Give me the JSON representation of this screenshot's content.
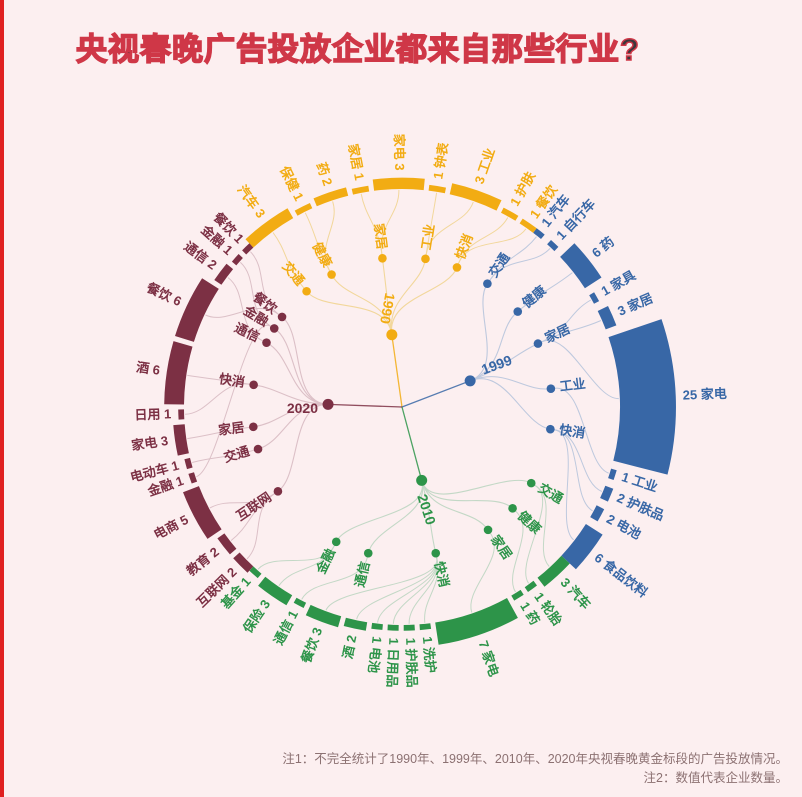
{
  "page": {
    "title": "央视春晚广告投放企业都来自那些行业?",
    "title_fill": "#3B373C",
    "title_stroke": "#CF3747",
    "background": "#FCEFF0",
    "accent_stripe": "#E02020",
    "notes_color": "#8C7172",
    "notes": [
      "注1：不完全统计了1990年、1999年、2010年、2020年央视春晚黄金标段的广告投放情况。",
      "注2：数值代表企业数量。"
    ]
  },
  "chart_data": {
    "type": "radial-dendrogram",
    "title": "央视春晚广告投放企业都来自那些行业?",
    "unit_note": "数值代表企业数量",
    "center": [
      402,
      407
    ],
    "ring_radius": 218,
    "group_radius": 150,
    "branches": [
      {
        "year": "1990",
        "color": "#F2AC13",
        "link_color": "#F2D79B",
        "start": -43,
        "end": 37,
        "node": {
          "angle": 352,
          "radius": 73
        },
        "label": {
          "angle": 351,
          "radius": 100,
          "rot": 100,
          "anchor": "middle"
        },
        "groups": [
          {
            "name": "交通",
            "angle": 320.5
          },
          {
            "name": "健康",
            "angle": 332
          },
          {
            "name": "家居",
            "angle": 352.5
          },
          {
            "name": "工业",
            "angle": 9
          },
          {
            "name": "快消",
            "angle": 21.5
          }
        ],
        "leaves": [
          {
            "name": "汽车",
            "count": 3,
            "group": 0
          },
          {
            "name": "保健",
            "count": 1,
            "group": 1
          },
          {
            "name": "药",
            "count": 2,
            "group": 1
          },
          {
            "name": "家居",
            "count": 1,
            "group": 2
          },
          {
            "name": "家电",
            "count": 3,
            "group": 2
          },
          {
            "name": "钟表",
            "count": 1,
            "group": 3
          },
          {
            "name": "工业",
            "count": 3,
            "group": 3
          },
          {
            "name": "护肤",
            "count": 1,
            "group": 4
          },
          {
            "name": "餐饮",
            "count": 1,
            "group": 4
          }
        ]
      },
      {
        "year": "1999",
        "color": "#3867A6",
        "link_color": "#BEC9DE",
        "start": 37,
        "end": 133,
        "node": {
          "angle": 69,
          "radius": 73
        },
        "label": {
          "angle": 66,
          "radius": 88,
          "rot": -20,
          "anchor": "start"
        },
        "groups": [
          {
            "name": "交通",
            "angle": 34.7
          },
          {
            "name": "健康",
            "angle": 50.5
          },
          {
            "name": "家居",
            "angle": 65
          },
          {
            "name": "工业",
            "angle": 83
          },
          {
            "name": "快消",
            "angle": 98.5
          }
        ],
        "leaves": [
          {
            "name": "汽车",
            "count": 1,
            "group": 0
          },
          {
            "name": "自行车",
            "count": 1,
            "group": 0
          },
          {
            "name": "药",
            "count": 6,
            "group": 1
          },
          {
            "name": "家具",
            "count": 1,
            "group": 2
          },
          {
            "name": "家居",
            "count": 3,
            "group": 2
          },
          {
            "name": "家电",
            "count": 25,
            "group": 2
          },
          {
            "name": "工业",
            "count": 1,
            "group": 3
          },
          {
            "name": "护肤品",
            "count": 2,
            "group": 4
          },
          {
            "name": "电池",
            "count": 2,
            "group": 4
          },
          {
            "name": "食品饮料",
            "count": 6,
            "group": 4
          }
        ]
      },
      {
        "year": "2010",
        "color": "#2D9449",
        "link_color": "#C3D8C6",
        "start": 133,
        "end": 223,
        "node": {
          "angle": 165,
          "radius": 76
        },
        "label": {
          "angle": 168,
          "radius": 90,
          "rot": 72,
          "anchor": "start"
        },
        "groups": [
          {
            "name": "交通",
            "angle": 120.5
          },
          {
            "name": "健康",
            "angle": 132.5
          },
          {
            "name": "家居",
            "angle": 145
          },
          {
            "name": "快消",
            "angle": 167
          },
          {
            "name": "通信",
            "angle": 193
          },
          {
            "name": "金融",
            "angle": 206
          }
        ],
        "leaves": [
          {
            "name": "汽车",
            "count": 3,
            "group": 0
          },
          {
            "name": "轮胎",
            "count": 1,
            "group": 0
          },
          {
            "name": "药",
            "count": 1,
            "group": 1
          },
          {
            "name": "家电",
            "count": 7,
            "group": 2
          },
          {
            "name": "洗护",
            "count": 1,
            "group": 3
          },
          {
            "name": "护肤品",
            "count": 1,
            "group": 3
          },
          {
            "name": "日用品",
            "count": 1,
            "group": 3
          },
          {
            "name": "电池",
            "count": 1,
            "group": 3
          },
          {
            "name": "酒",
            "count": 2,
            "group": 3
          },
          {
            "name": "餐饮",
            "count": 3,
            "group": 3
          },
          {
            "name": "通信",
            "count": 1,
            "group": 4
          },
          {
            "name": "保险",
            "count": 3,
            "group": 5
          },
          {
            "name": "基金",
            "count": 1,
            "group": 5
          }
        ]
      },
      {
        "year": "2020",
        "color": "#7C3044",
        "link_color": "#DCC0C7",
        "start": 223,
        "end": 317,
        "node": {
          "angle": 272,
          "radius": 74
        },
        "label": {
          "angle": 268.5,
          "radius": 84,
          "rot": 0,
          "anchor": "end"
        },
        "groups": [
          {
            "name": "互联网",
            "angle": 235.8
          },
          {
            "name": "交通",
            "angle": 253.7
          },
          {
            "name": "家居",
            "angle": 262.4
          },
          {
            "name": "快消",
            "angle": 278.5
          },
          {
            "name": "通信",
            "angle": 295.4
          },
          {
            "name": "金融",
            "angle": 301.6
          },
          {
            "name": "餐饮",
            "angle": 306.9
          }
        ],
        "leaves": [
          {
            "name": "互联网",
            "count": 2,
            "group": 0
          },
          {
            "name": "教育",
            "count": 2,
            "group": 0
          },
          {
            "name": "电商",
            "count": 5,
            "group": 0
          },
          {
            "name": "金融",
            "count": 1,
            "group": 5
          },
          {
            "name": "电动车",
            "count": 1,
            "group": 1
          },
          {
            "name": "家电",
            "count": 3,
            "group": 2
          },
          {
            "name": "日用",
            "count": 1,
            "group": 3
          },
          {
            "name": "酒",
            "count": 6,
            "group": 3
          },
          {
            "name": "餐饮",
            "count": 6,
            "group": 6
          },
          {
            "name": "通信",
            "count": 2,
            "group": 4
          },
          {
            "name": "金融",
            "count": 1,
            "group": 5
          },
          {
            "name": "餐饮",
            "count": 1,
            "group": 6
          }
        ]
      }
    ]
  }
}
